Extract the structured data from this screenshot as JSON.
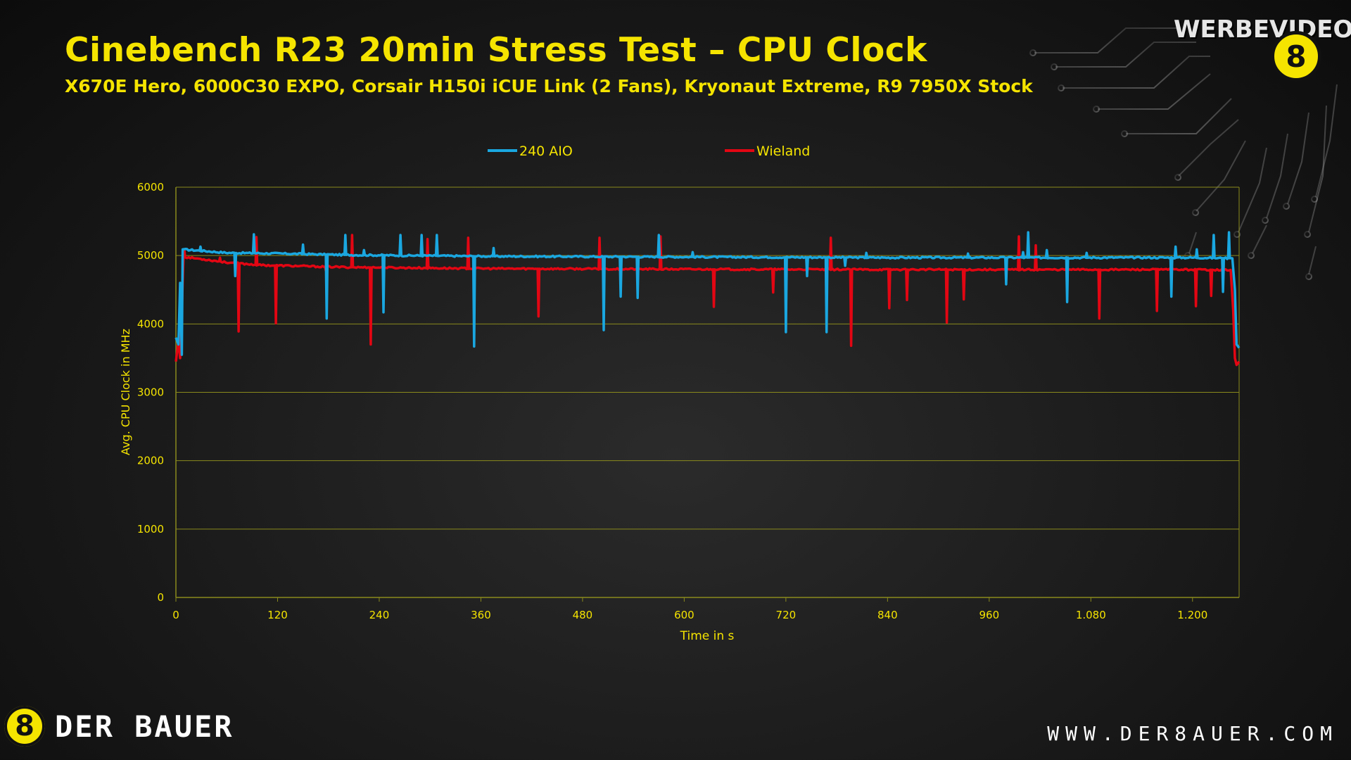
{
  "chart_data": {
    "type": "line",
    "title": "Cinebench R23 20min Stress Test – CPU Clock",
    "subtitle": "X670E Hero, 6000C30 EXPO, Corsair H150i iCUE Link (2 Fans), Kryonaut Extreme, R9 7950X Stock",
    "xlabel": "Time in s",
    "ylabel": "Avg. CPU Clock in MHz",
    "xlim": [
      0,
      1255
    ],
    "ylim": [
      0,
      6000
    ],
    "x_ticks": [
      0,
      120,
      240,
      360,
      480,
      600,
      720,
      840,
      960,
      1080,
      1200
    ],
    "x_tick_labels": [
      "0",
      "120",
      "240",
      "360",
      "480",
      "600",
      "720",
      "840",
      "960",
      "1.080",
      "1.200"
    ],
    "y_ticks": [
      0,
      1000,
      2000,
      3000,
      4000,
      5000,
      6000
    ],
    "y_tick_labels": [
      "0",
      "1000",
      "2000",
      "3000",
      "4000",
      "5000",
      "6000"
    ],
    "grid": true,
    "legend_position": "top",
    "colors": {
      "title": "#f5e400",
      "axis_text": "#f5e400",
      "grid": "#8a8a1c",
      "series_240aio": "#1aa7e0",
      "series_wieland": "#e30613"
    },
    "series": [
      {
        "name": "240 AIO",
        "color": "#1aa7e0",
        "baseline": [
          [
            0,
            3800
          ],
          [
            3,
            3700
          ],
          [
            5,
            4600
          ],
          [
            7,
            3550
          ],
          [
            8,
            5090
          ],
          [
            30,
            5070
          ],
          [
            60,
            5040
          ],
          [
            120,
            5030
          ],
          [
            200,
            5010
          ],
          [
            360,
            4990
          ],
          [
            600,
            4980
          ],
          [
            840,
            4970
          ],
          [
            1080,
            4970
          ],
          [
            1200,
            4970
          ],
          [
            1247,
            4960
          ],
          [
            1250,
            4500
          ],
          [
            1252,
            3700
          ],
          [
            1255,
            3650
          ]
        ],
        "spikes": [
          [
            29,
            5130
          ],
          [
            70,
            4700
          ],
          [
            92,
            5310
          ],
          [
            150,
            5160
          ],
          [
            178,
            4080
          ],
          [
            200,
            5300
          ],
          [
            222,
            5080
          ],
          [
            245,
            4170
          ],
          [
            265,
            5300
          ],
          [
            290,
            5300
          ],
          [
            308,
            5300
          ],
          [
            352,
            3670
          ],
          [
            375,
            5110
          ],
          [
            505,
            3910
          ],
          [
            525,
            4400
          ],
          [
            545,
            4380
          ],
          [
            570,
            5300
          ],
          [
            610,
            5050
          ],
          [
            720,
            3880
          ],
          [
            745,
            4700
          ],
          [
            768,
            3880
          ],
          [
            790,
            4850
          ],
          [
            815,
            5040
          ],
          [
            935,
            5030
          ],
          [
            980,
            4580
          ],
          [
            1000,
            5050
          ],
          [
            1006,
            5340
          ],
          [
            1028,
            5080
          ],
          [
            1052,
            4320
          ],
          [
            1075,
            5040
          ],
          [
            1175,
            4400
          ],
          [
            1180,
            5130
          ],
          [
            1205,
            5090
          ],
          [
            1225,
            5300
          ],
          [
            1236,
            4470
          ],
          [
            1243,
            5340
          ]
        ]
      },
      {
        "name": "Wieland",
        "color": "#e30613",
        "baseline": [
          [
            0,
            3450
          ],
          [
            3,
            3750
          ],
          [
            5,
            3500
          ],
          [
            7,
            4200
          ],
          [
            9,
            4980
          ],
          [
            30,
            4950
          ],
          [
            60,
            4900
          ],
          [
            100,
            4860
          ],
          [
            200,
            4830
          ],
          [
            360,
            4810
          ],
          [
            600,
            4800
          ],
          [
            840,
            4795
          ],
          [
            1080,
            4795
          ],
          [
            1200,
            4795
          ],
          [
            1245,
            4790
          ],
          [
            1248,
            4200
          ],
          [
            1250,
            3500
          ],
          [
            1252,
            3400
          ],
          [
            1255,
            3450
          ]
        ],
        "spikes": [
          [
            10,
            5080
          ],
          [
            52,
            4970
          ],
          [
            74,
            3890
          ],
          [
            95,
            5270
          ],
          [
            118,
            4010
          ],
          [
            177,
            4780
          ],
          [
            208,
            5300
          ],
          [
            230,
            3700
          ],
          [
            297,
            5240
          ],
          [
            345,
            5260
          ],
          [
            428,
            4110
          ],
          [
            500,
            5260
          ],
          [
            572,
            5280
          ],
          [
            635,
            4250
          ],
          [
            705,
            4460
          ],
          [
            773,
            5260
          ],
          [
            797,
            3680
          ],
          [
            842,
            4230
          ],
          [
            863,
            4350
          ],
          [
            910,
            4020
          ],
          [
            930,
            4360
          ],
          [
            995,
            5280
          ],
          [
            1015,
            5150
          ],
          [
            1090,
            4080
          ],
          [
            1158,
            4190
          ],
          [
            1204,
            4260
          ],
          [
            1222,
            4410
          ]
        ]
      }
    ]
  },
  "branding": {
    "left_logo_text": "DER BAUER",
    "badge_glyph": "8",
    "website": "WWW.DER8AUER.COM",
    "watermark": "WERBEVIDEO"
  }
}
